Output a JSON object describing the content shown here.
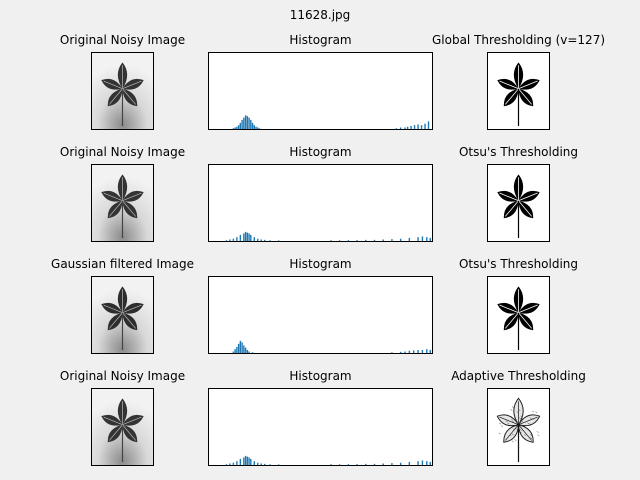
{
  "figure": {
    "title": "11628.jpg"
  },
  "rows": [
    {
      "left_title": "Original Noisy Image",
      "hist_title": "Histogram",
      "right_title": "Global Thresholding (v=127)",
      "left_variant": "noisy",
      "right_variant": "binary"
    },
    {
      "left_title": "Original Noisy Image",
      "hist_title": "Histogram",
      "right_title": "Otsu's Thresholding",
      "left_variant": "noisy",
      "right_variant": "binary"
    },
    {
      "left_title": "Gaussian filtered Image",
      "hist_title": "Histogram",
      "right_title": "Otsu's Thresholding",
      "left_variant": "blurred",
      "right_variant": "binary"
    },
    {
      "left_title": "Original Noisy Image",
      "hist_title": "Histogram",
      "right_title": "Adaptive Thresholding",
      "left_variant": "noisy",
      "right_variant": "adaptive"
    }
  ],
  "chart_data": [
    {
      "type": "bar",
      "title": "Histogram",
      "xlim": [
        0,
        256
      ],
      "ylim": [
        0,
        1
      ],
      "color": "#1f77b4",
      "series": [
        {
          "values": [
            [
              28,
              0.01
            ],
            [
              30,
              0.02
            ],
            [
              32,
              0.03
            ],
            [
              34,
              0.05
            ],
            [
              36,
              0.08
            ],
            [
              38,
              0.12
            ],
            [
              40,
              0.15
            ],
            [
              42,
              0.18
            ],
            [
              44,
              0.17
            ],
            [
              46,
              0.15
            ],
            [
              48,
              0.12
            ],
            [
              50,
              0.08
            ],
            [
              52,
              0.05
            ],
            [
              54,
              0.03
            ],
            [
              56,
              0.02
            ],
            [
              58,
              0.01
            ],
            [
              215,
              0.01
            ],
            [
              220,
              0.02
            ],
            [
              225,
              0.02
            ],
            [
              228,
              0.03
            ],
            [
              232,
              0.04
            ],
            [
              236,
              0.05
            ],
            [
              240,
              0.06
            ],
            [
              244,
              0.05
            ],
            [
              248,
              0.07
            ],
            [
              252,
              0.1
            ]
          ]
        }
      ]
    },
    {
      "type": "bar",
      "title": "Histogram",
      "xlim": [
        0,
        256
      ],
      "ylim": [
        0,
        1
      ],
      "color": "#1f77b4",
      "series": [
        {
          "values": [
            [
              20,
              0.01
            ],
            [
              24,
              0.02
            ],
            [
              28,
              0.03
            ],
            [
              32,
              0.05
            ],
            [
              36,
              0.08
            ],
            [
              40,
              0.1
            ],
            [
              42,
              0.12
            ],
            [
              44,
              0.11
            ],
            [
              46,
              0.1
            ],
            [
              48,
              0.08
            ],
            [
              52,
              0.05
            ],
            [
              56,
              0.03
            ],
            [
              60,
              0.02
            ],
            [
              64,
              0.015
            ],
            [
              70,
              0.01
            ],
            [
              80,
              0.008
            ],
            [
              140,
              0.01
            ],
            [
              150,
              0.01
            ],
            [
              160,
              0.012
            ],
            [
              170,
              0.012
            ],
            [
              180,
              0.015
            ],
            [
              190,
              0.015
            ],
            [
              200,
              0.02
            ],
            [
              210,
              0.025
            ],
            [
              220,
              0.03
            ],
            [
              230,
              0.04
            ],
            [
              240,
              0.05
            ],
            [
              245,
              0.06
            ],
            [
              250,
              0.05
            ],
            [
              254,
              0.04
            ]
          ]
        }
      ]
    },
    {
      "type": "bar",
      "title": "Histogram",
      "xlim": [
        0,
        256
      ],
      "ylim": [
        0,
        1
      ],
      "color": "#1f77b4",
      "series": [
        {
          "values": [
            [
              28,
              0.02
            ],
            [
              30,
              0.05
            ],
            [
              32,
              0.08
            ],
            [
              34,
              0.12
            ],
            [
              36,
              0.16
            ],
            [
              38,
              0.14
            ],
            [
              40,
              0.1
            ],
            [
              42,
              0.07
            ],
            [
              44,
              0.04
            ],
            [
              46,
              0.02
            ],
            [
              50,
              0.01
            ],
            [
              210,
              0.01
            ],
            [
              220,
              0.015
            ],
            [
              225,
              0.02
            ],
            [
              230,
              0.03
            ],
            [
              235,
              0.035
            ],
            [
              240,
              0.04
            ],
            [
              245,
              0.04
            ],
            [
              250,
              0.05
            ],
            [
              254,
              0.04
            ]
          ]
        }
      ]
    },
    {
      "type": "bar",
      "title": "Histogram",
      "xlim": [
        0,
        256
      ],
      "ylim": [
        0,
        1
      ],
      "color": "#1f77b4",
      "series": [
        {
          "values": [
            [
              20,
              0.01
            ],
            [
              24,
              0.02
            ],
            [
              28,
              0.03
            ],
            [
              32,
              0.05
            ],
            [
              36,
              0.08
            ],
            [
              40,
              0.1
            ],
            [
              42,
              0.12
            ],
            [
              44,
              0.11
            ],
            [
              46,
              0.1
            ],
            [
              48,
              0.08
            ],
            [
              52,
              0.05
            ],
            [
              56,
              0.03
            ],
            [
              60,
              0.02
            ],
            [
              64,
              0.015
            ],
            [
              70,
              0.01
            ],
            [
              80,
              0.008
            ],
            [
              140,
              0.01
            ],
            [
              150,
              0.01
            ],
            [
              160,
              0.012
            ],
            [
              170,
              0.012
            ],
            [
              180,
              0.015
            ],
            [
              190,
              0.015
            ],
            [
              200,
              0.02
            ],
            [
              210,
              0.025
            ],
            [
              220,
              0.03
            ],
            [
              230,
              0.04
            ],
            [
              240,
              0.05
            ],
            [
              245,
              0.06
            ],
            [
              250,
              0.05
            ],
            [
              254,
              0.04
            ]
          ]
        }
      ]
    }
  ]
}
